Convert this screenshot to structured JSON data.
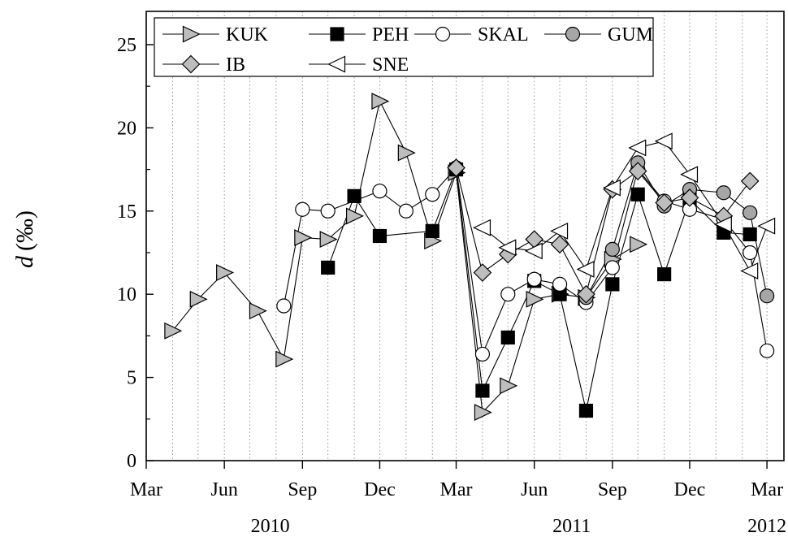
{
  "chart_data": {
    "type": "line",
    "ylabel_symbol": "d",
    "ylabel_unit": "(‰)",
    "ylim": [
      0,
      27
    ],
    "yticks": [
      0,
      5,
      10,
      15,
      20,
      25
    ],
    "xlim": [
      "2010-03-01",
      "2012-03-21"
    ],
    "month_ticks": [
      {
        "date": "2010-03-01",
        "label": "Mar"
      },
      {
        "date": "2010-06-01",
        "label": "Jun"
      },
      {
        "date": "2010-09-01",
        "label": "Sep"
      },
      {
        "date": "2010-12-01",
        "label": "Dec"
      },
      {
        "date": "2011-03-01",
        "label": "Mar"
      },
      {
        "date": "2011-06-01",
        "label": "Jun"
      },
      {
        "date": "2011-09-01",
        "label": "Sep"
      },
      {
        "date": "2011-12-01",
        "label": "Dec"
      },
      {
        "date": "2012-03-01",
        "label": "Mar"
      }
    ],
    "years": [
      {
        "label": "2010",
        "date": "2010-07-25"
      },
      {
        "label": "2011",
        "date": "2011-07-15"
      },
      {
        "label": "2012",
        "date": "2012-03-01"
      }
    ],
    "grid": "vertical dotted monthly",
    "legend": "top-left",
    "series": [
      {
        "name": "KUK",
        "marker": "triangle-right",
        "fill": "#bdbdbd",
        "points": [
          [
            "2010-04-01",
            7.8
          ],
          [
            "2010-05-01",
            9.7
          ],
          [
            "2010-06-01",
            11.3
          ],
          [
            "2010-07-10",
            9.0
          ],
          [
            "2010-08-10",
            6.1
          ],
          [
            "2010-09-01",
            13.4
          ],
          [
            "2010-10-01",
            13.3
          ],
          [
            "2010-11-01",
            14.7
          ],
          [
            "2010-12-01",
            21.6
          ],
          [
            "2011-01-01",
            18.5
          ],
          [
            "2011-02-01",
            13.2
          ],
          [
            "2011-03-01",
            17.3
          ],
          [
            "2011-04-01",
            2.9
          ],
          [
            "2011-05-01",
            4.5
          ],
          [
            "2011-06-01",
            9.7
          ],
          [
            "2011-07-01",
            10.0
          ],
          [
            "2011-08-01",
            9.8
          ],
          [
            "2011-09-01",
            12.1
          ],
          [
            "2011-10-01",
            13.0
          ]
        ]
      },
      {
        "name": "PEH",
        "marker": "square",
        "fill": "#000000",
        "points": [
          [
            "2010-10-01",
            11.6
          ],
          [
            "2010-11-01",
            15.9
          ],
          [
            "2010-12-01",
            13.5
          ],
          [
            "2011-02-01",
            13.8
          ],
          [
            "2011-03-01",
            17.5
          ],
          [
            "2011-04-01",
            4.2
          ],
          [
            "2011-05-01",
            7.4
          ],
          [
            "2011-06-01",
            10.8
          ],
          [
            "2011-07-01",
            10.0
          ],
          [
            "2011-08-01",
            3.0
          ],
          [
            "2011-09-01",
            10.6
          ],
          [
            "2011-10-01",
            16.0
          ],
          [
            "2011-11-01",
            11.2
          ],
          [
            "2011-12-01",
            15.7
          ],
          [
            "2012-01-10",
            13.7
          ],
          [
            "2012-02-10",
            13.6
          ]
        ]
      },
      {
        "name": "SKAL",
        "marker": "circle",
        "fill": "#ffffff",
        "points": [
          [
            "2010-08-10",
            9.3
          ],
          [
            "2010-09-01",
            15.1
          ],
          [
            "2010-10-01",
            15.0
          ],
          [
            "2010-12-01",
            16.2
          ],
          [
            "2011-01-01",
            15.0
          ],
          [
            "2011-02-01",
            16.0
          ],
          [
            "2011-03-01",
            17.6
          ],
          [
            "2011-04-01",
            6.4
          ],
          [
            "2011-05-01",
            10.0
          ],
          [
            "2011-06-01",
            10.9
          ],
          [
            "2011-07-01",
            10.6
          ],
          [
            "2011-08-01",
            9.5
          ],
          [
            "2011-09-01",
            11.6
          ],
          [
            "2011-10-01",
            17.5
          ],
          [
            "2011-11-01",
            15.6
          ],
          [
            "2011-12-01",
            15.1
          ],
          [
            "2012-01-10",
            14.5
          ],
          [
            "2012-02-10",
            12.5
          ],
          [
            "2012-03-01",
            6.6
          ]
        ]
      },
      {
        "name": "GUM",
        "marker": "circle",
        "fill": "#a6a6a6",
        "points": [
          [
            "2011-08-01",
            9.8
          ],
          [
            "2011-09-01",
            12.7
          ],
          [
            "2011-10-01",
            17.9
          ],
          [
            "2011-11-01",
            15.3
          ],
          [
            "2011-12-01",
            16.3
          ],
          [
            "2012-01-10",
            16.1
          ],
          [
            "2012-02-10",
            14.9
          ],
          [
            "2012-03-01",
            9.9
          ]
        ]
      },
      {
        "name": "IB",
        "marker": "diamond",
        "fill": "#bdbdbd",
        "points": [
          [
            "2011-03-01",
            17.6
          ],
          [
            "2011-04-01",
            11.3
          ],
          [
            "2011-05-01",
            12.4
          ],
          [
            "2011-06-01",
            13.3
          ],
          [
            "2011-07-01",
            13.0
          ],
          [
            "2011-08-01",
            10.0
          ],
          [
            "2011-09-01",
            16.3
          ],
          [
            "2011-10-01",
            17.4
          ],
          [
            "2011-11-01",
            15.5
          ],
          [
            "2011-12-01",
            15.8
          ],
          [
            "2012-01-10",
            14.7
          ],
          [
            "2012-02-10",
            16.8
          ]
        ]
      },
      {
        "name": "SNE",
        "marker": "triangle-left",
        "fill": "#ffffff",
        "points": [
          [
            "2011-04-01",
            14.0
          ],
          [
            "2011-05-01",
            12.8
          ],
          [
            "2011-06-01",
            12.6
          ],
          [
            "2011-07-01",
            13.8
          ],
          [
            "2011-08-01",
            11.5
          ],
          [
            "2011-09-01",
            16.4
          ],
          [
            "2011-10-01",
            18.8
          ],
          [
            "2011-11-01",
            19.2
          ],
          [
            "2011-12-01",
            17.2
          ],
          [
            "2012-01-10",
            14.2
          ],
          [
            "2012-02-10",
            11.4
          ],
          [
            "2012-03-01",
            14.1
          ]
        ]
      }
    ]
  }
}
